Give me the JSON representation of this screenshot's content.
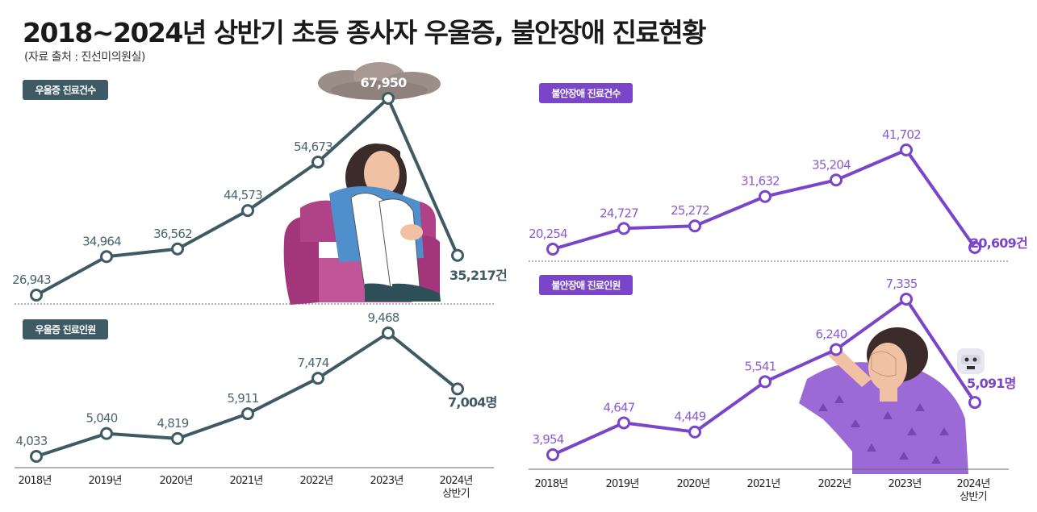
{
  "title": "2018~2024년 상반기 초등 종사자 우울증, 불안장애 진료현황",
  "source": "(자료 출처 : 진선미의원실)",
  "colors": {
    "depression": "#3e5a64",
    "anxiety": "#7a45c8",
    "badge_text": "#ffffff"
  },
  "chart_data": [
    {
      "type": "line",
      "badge": "우울증 진료건수",
      "categories": [
        "2018년",
        "2019년",
        "2020년",
        "2021년",
        "2022년",
        "2023년",
        "2024년 상반기"
      ],
      "values": [
        26943,
        34964,
        36562,
        44573,
        54673,
        67950,
        35217
      ],
      "labels": [
        "26,943",
        "34,964",
        "36,562",
        "44,573",
        "54,673",
        "67,950",
        "35,217건"
      ]
    },
    {
      "type": "line",
      "badge": "우울증 진료인원",
      "categories": [
        "2018년",
        "2019년",
        "2020년",
        "2021년",
        "2022년",
        "2023년",
        "2024년 상반기"
      ],
      "values": [
        4033,
        5040,
        4819,
        5911,
        7474,
        9468,
        7004
      ],
      "labels": [
        "4,033",
        "5,040",
        "4,819",
        "5,911",
        "7,474",
        "9,468",
        "7,004명"
      ]
    },
    {
      "type": "line",
      "badge": "불안장애 진료건수",
      "categories": [
        "2018년",
        "2019년",
        "2020년",
        "2021년",
        "2022년",
        "2023년",
        "2024년 상반기"
      ],
      "values": [
        20254,
        24727,
        25272,
        31632,
        35204,
        41702,
        20609
      ],
      "labels": [
        "20,254",
        "24,727",
        "25,272",
        "31,632",
        "35,204",
        "41,702",
        "20,609건"
      ]
    },
    {
      "type": "line",
      "badge": "불안장애 진료인원",
      "categories": [
        "2018년",
        "2019년",
        "2020년",
        "2021년",
        "2022년",
        "2023년",
        "2024년 상반기"
      ],
      "values": [
        3954,
        4647,
        4449,
        5541,
        6240,
        7335,
        5091
      ],
      "labels": [
        "3,954",
        "4,647",
        "4,449",
        "5,541",
        "6,240",
        "7,335",
        "5,091명"
      ]
    }
  ],
  "x_axis": {
    "years": [
      "2018년",
      "2019년",
      "2020년",
      "2021년",
      "2022년",
      "2023년",
      "2024년"
    ],
    "last_sub": "상반기"
  }
}
